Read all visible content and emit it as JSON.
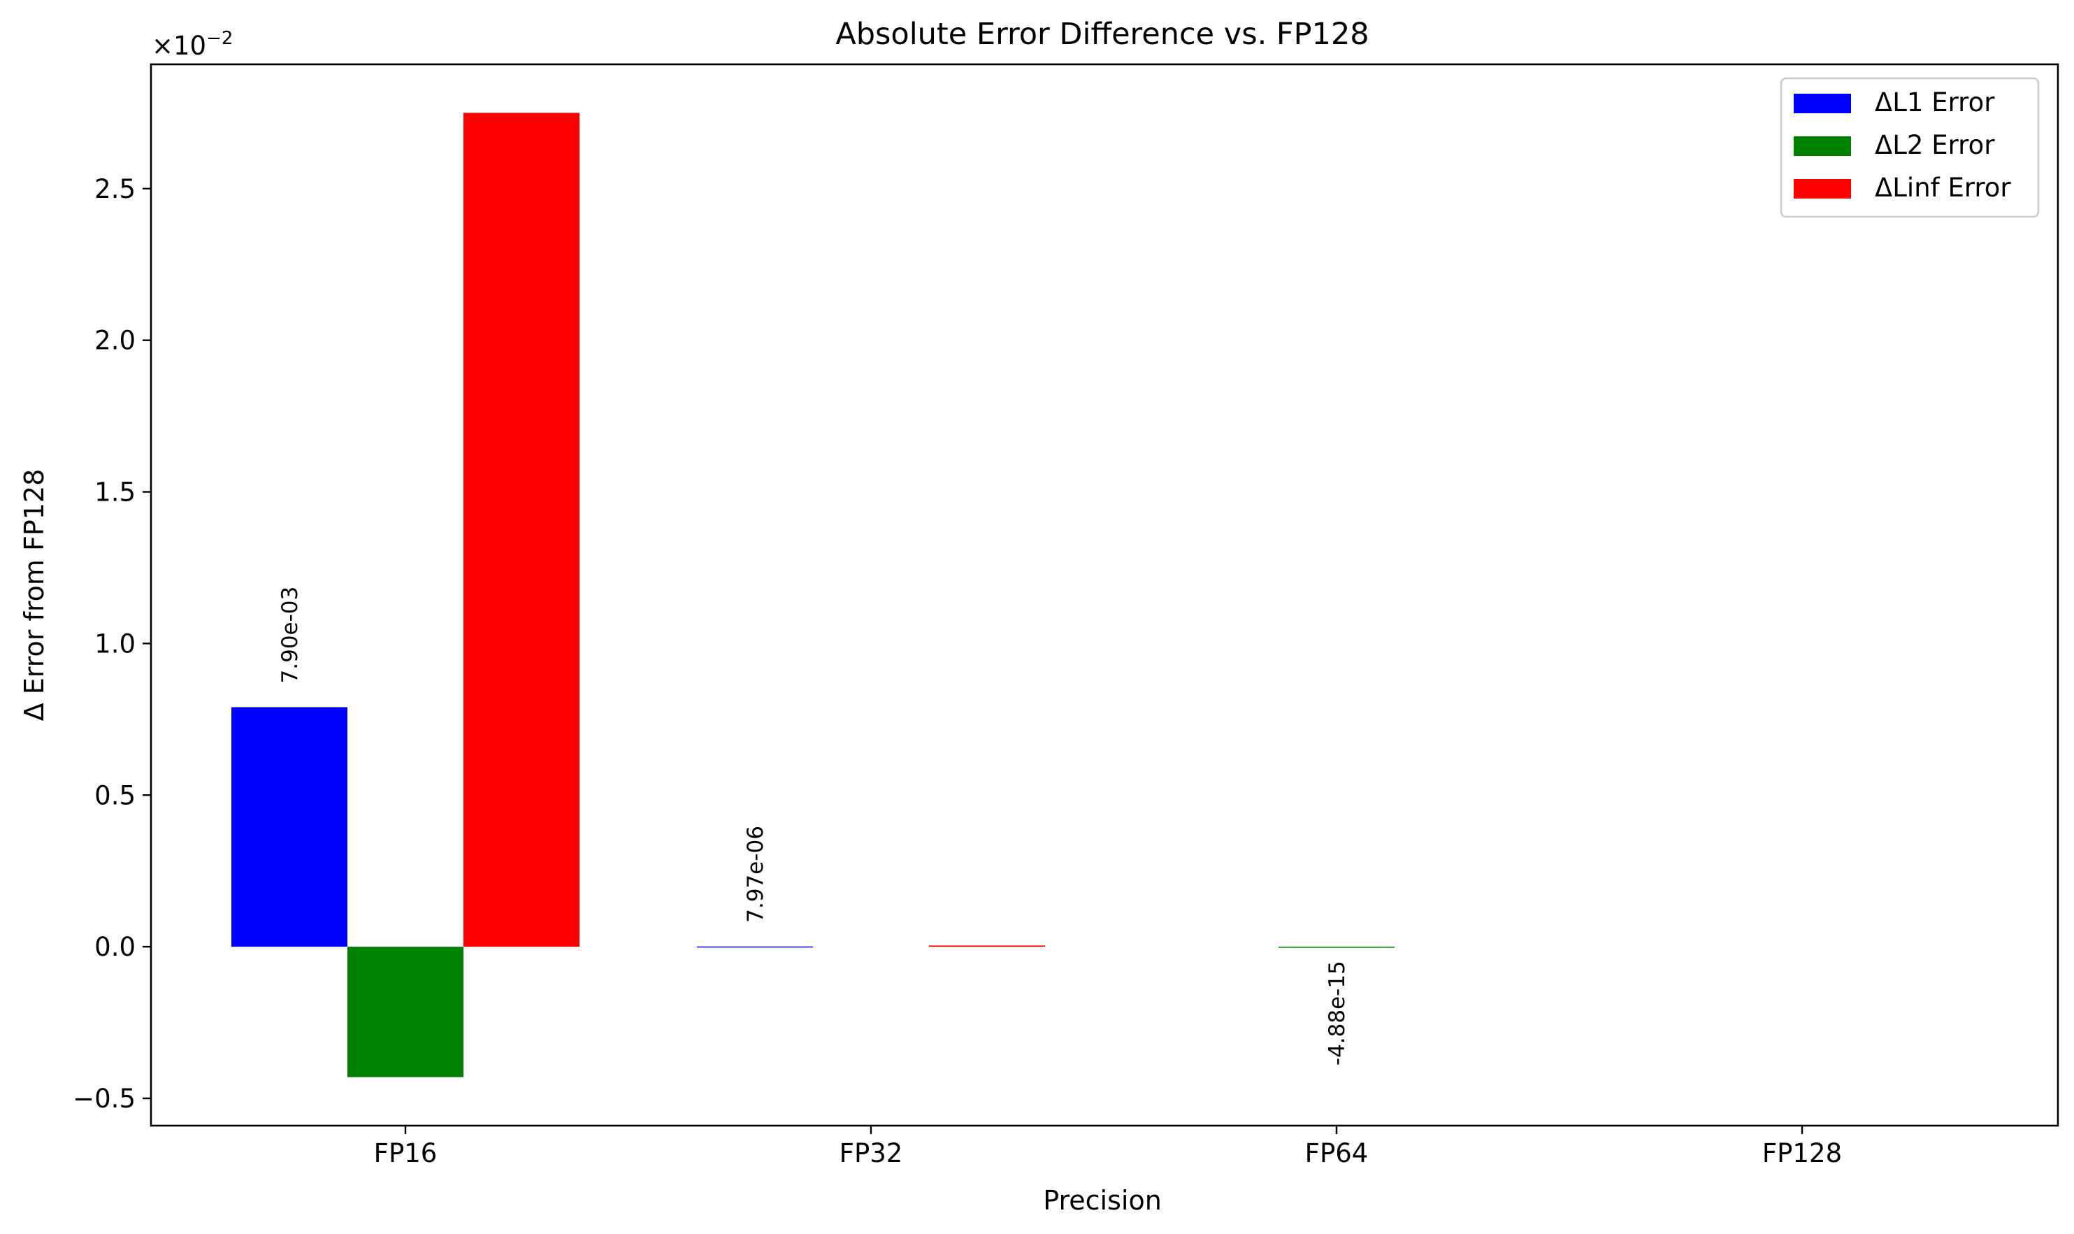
{
  "chart_data": {
    "type": "bar",
    "title": "Absolute Error Difference vs. FP128",
    "xlabel": "Precision",
    "ylabel": "Δ Error from FP128",
    "offset_label": "×10",
    "offset_exponent": "−2",
    "categories": [
      "FP16",
      "FP32",
      "FP64",
      "FP128"
    ],
    "yticks": [
      -0.5,
      0.0,
      0.5,
      1.0,
      1.5,
      2.0,
      2.5
    ],
    "ytick_labels": [
      "−0.5",
      "0.0",
      "0.5",
      "1.0",
      "1.5",
      "2.0",
      "2.5"
    ],
    "ylim": [
      -0.59,
      2.91
    ],
    "y_scale_note": "values in units of 1e-2",
    "series": [
      {
        "name": "ΔL1 Error",
        "color": "#0000ff",
        "values": [
          0.79,
          0.000797,
          0.0,
          0.0
        ]
      },
      {
        "name": "ΔL2 Error",
        "color": "#008000",
        "values": [
          -0.43,
          0.0,
          -4.88e-13,
          0.0
        ]
      },
      {
        "name": "ΔLinf Error",
        "color": "#ff0000",
        "values": [
          2.75,
          0.004,
          0.0,
          0.0
        ]
      }
    ],
    "annotations": [
      {
        "text": "7.90e-03",
        "category": "FP16",
        "series": "ΔL1 Error"
      },
      {
        "text": "7.97e-06",
        "category": "FP32",
        "series": "ΔL1 Error"
      },
      {
        "text": "-4.88e-15",
        "category": "FP64",
        "series": "ΔL2 Error"
      }
    ],
    "legend_position": "top-right",
    "grid": false
  }
}
